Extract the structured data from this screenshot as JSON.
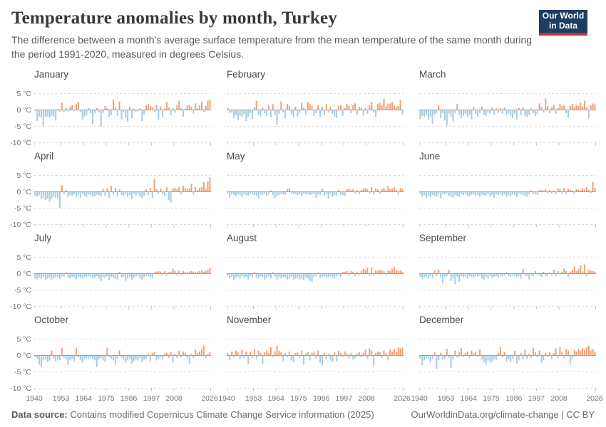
{
  "header": {
    "title": "Temperature anomalies by month, Turkey",
    "subtitle": "The difference between a month's average surface temperature from the mean temperature of the same month during the period 1991-2020, measured in degrees Celsius.",
    "logo": {
      "line1": "Our World",
      "line2": "in Data"
    }
  },
  "footer": {
    "source_label": "Data source:",
    "source_text": " Contains modified Copernicus Climate Change Service information (2025)",
    "link_text": "OurWorldinData.org/climate-change",
    "separator": " | ",
    "license": "CC BY"
  },
  "axes": {
    "y_tick_labels": [
      "5 °C",
      "0 °C",
      "-5 °C",
      "-10 °C"
    ],
    "y_tick_values": [
      5,
      0,
      -5,
      -10
    ],
    "x_tick_years": [
      1940,
      1953,
      1964,
      1975,
      1986,
      1997,
      2008,
      2026
    ],
    "year_start": 1940,
    "year_axis_end": 2026,
    "ylim": [
      -10,
      5
    ],
    "grid": "dashed horizontal"
  },
  "colors": {
    "positive_bar": "#F0A179",
    "negative_bar": "#A8CBE2",
    "gridline": "#DCDCDC",
    "zero_line": "#A6A098",
    "tick_mark": "#C2C2C2",
    "logo_navy": "#1D3D63",
    "logo_red": "#C5303E"
  },
  "chart_data": [
    {
      "type": "bar",
      "title": "January",
      "x_start": 1940,
      "unit": "°C",
      "values": [
        -0.3,
        -3.4,
        -2.0,
        -2.3,
        -4.8,
        -2.2,
        -2.0,
        -2.4,
        -1.8,
        -2.1,
        -3.2,
        0.3,
        -0.6,
        2.2,
        -0.8,
        0.6,
        -0.4,
        1.0,
        1.5,
        -0.3,
        1.8,
        2.4,
        -0.6,
        -3.0,
        -2.1,
        -1.6,
        0.5,
        -1.1,
        -4.4,
        -1.0,
        0.6,
        -0.7,
        -5.1,
        -0.9,
        1.2,
        0.5,
        -2.1,
        -1.6,
        3.1,
        0.8,
        -1.9,
        2.6,
        -2.9,
        -0.7,
        -2.3,
        -3.6,
        1.0,
        -2.6,
        0.4,
        -0.5,
        -0.4,
        0.5,
        -3.4,
        -1.3,
        1.5,
        1.8,
        1.2,
        0.8,
        -0.7,
        1.5,
        -2.9,
        1.0,
        -2.1,
        0.5,
        2.5,
        0.8,
        -1.6,
        0.6,
        -0.9,
        1.5,
        2.8,
        0.5,
        -2.1,
        0.4,
        1.4,
        1.6,
        1.0,
        -1.1,
        2.0,
        0.5,
        1.5,
        2.6,
        -0.6,
        1.2,
        2.9,
        3.2
      ]
    },
    {
      "type": "bar",
      "title": "February",
      "x_start": 1940,
      "unit": "°C",
      "values": [
        0.5,
        -1.0,
        -0.8,
        -2.5,
        -1.5,
        -3.0,
        -1.8,
        -2.0,
        -1.2,
        -3.5,
        -2.2,
        -1.0,
        -2.8,
        0.8,
        2.8,
        -1.5,
        -2.0,
        0.6,
        -1.0,
        -1.8,
        1.5,
        -2.2,
        1.8,
        -1.5,
        -4.5,
        -1.2,
        2.6,
        -0.8,
        -2.5,
        1.8,
        1.2,
        -1.5,
        -2.2,
        1.0,
        -2.0,
        -1.0,
        2.2,
        0.8,
        -1.5,
        2.5,
        1.8,
        1.2,
        -1.8,
        -1.0,
        1.5,
        -2.2,
        1.0,
        -1.5,
        1.8,
        -0.8,
        1.0,
        -1.2,
        -2.0,
        -2.5,
        1.2,
        1.5,
        -1.8,
        0.6,
        1.8,
        1.2,
        -1.0,
        1.5,
        2.0,
        -1.5,
        1.0,
        0.8,
        -1.8,
        0.6,
        -1.2,
        1.5,
        2.5,
        -0.8,
        -2.0,
        1.8,
        2.2,
        1.5,
        3.5,
        1.0,
        1.8,
        2.0,
        2.5,
        1.5,
        1.0,
        1.2,
        3.0,
        -1.5
      ]
    },
    {
      "type": "bar",
      "title": "March",
      "x_start": 1940,
      "unit": "°C",
      "values": [
        -2.8,
        -1.8,
        -2.2,
        -1.5,
        -3.0,
        -2.0,
        -4.2,
        -1.5,
        -1.0,
        1.5,
        -2.5,
        -1.0,
        -3.2,
        -4.8,
        -1.2,
        -2.0,
        -3.5,
        -1.0,
        1.8,
        -1.5,
        -2.5,
        -1.8,
        -1.2,
        -2.2,
        -1.5,
        -2.8,
        0.8,
        -1.2,
        -1.8,
        -1.0,
        1.0,
        -1.5,
        -1.8,
        -0.8,
        -1.2,
        0.8,
        -1.5,
        0.5,
        -1.0,
        0.6,
        -1.2,
        0.8,
        -1.5,
        -1.0,
        -1.8,
        -2.5,
        -1.2,
        -2.8,
        0.6,
        -1.5,
        0.8,
        -1.8,
        -2.2,
        -1.5,
        0.5,
        -1.0,
        -1.8,
        -1.2,
        2.0,
        1.0,
        -0.8,
        3.5,
        1.2,
        -1.0,
        0.8,
        1.5,
        -1.2,
        0.6,
        1.8,
        1.2,
        1.5,
        -1.0,
        -2.5,
        1.2,
        1.8,
        1.0,
        1.5,
        1.2,
        2.2,
        1.0,
        2.8,
        0.8,
        -2.5,
        1.5,
        2.0,
        1.8
      ]
    },
    {
      "type": "bar",
      "title": "April",
      "x_start": 1940,
      "unit": "°C",
      "values": [
        -1.2,
        -1.5,
        -1.0,
        -2.2,
        -1.8,
        -2.5,
        -2.0,
        -3.0,
        -2.2,
        -1.5,
        -1.8,
        -2.0,
        -5.0,
        2.0,
        -0.8,
        0.5,
        -1.5,
        -1.0,
        -1.2,
        -0.8,
        -1.5,
        -1.0,
        -1.8,
        -0.6,
        -1.2,
        -1.5,
        -0.8,
        -1.0,
        -1.5,
        -1.2,
        -0.8,
        -1.0,
        -1.5,
        0.8,
        -1.2,
        1.0,
        -1.8,
        1.8,
        -0.8,
        1.2,
        -1.5,
        0.8,
        -1.0,
        -1.2,
        -0.8,
        -1.5,
        -1.0,
        -2.2,
        -0.6,
        -1.2,
        -0.8,
        -1.5,
        -2.0,
        -1.2,
        0.8,
        -1.0,
        1.2,
        -1.8,
        3.8,
        0.8,
        -0.6,
        1.0,
        -0.8,
        -1.2,
        1.5,
        -2.5,
        -3.2,
        1.0,
        1.2,
        0.8,
        1.5,
        -0.8,
        1.8,
        1.2,
        0.8,
        1.0,
        2.5,
        -0.8,
        1.5,
        0.6,
        1.2,
        1.5,
        3.0,
        1.0,
        3.2,
        4.5
      ]
    },
    {
      "type": "bar",
      "title": "May",
      "x_start": 1940,
      "unit": "°C",
      "values": [
        -0.5,
        -1.8,
        -0.8,
        -1.0,
        -1.2,
        -0.8,
        -1.0,
        -1.5,
        -0.8,
        -1.0,
        -1.2,
        -0.6,
        -0.8,
        -1.0,
        -1.2,
        -2.0,
        -0.8,
        -1.0,
        -0.6,
        -1.2,
        -0.8,
        0.4,
        -1.0,
        -1.8,
        -1.2,
        -1.0,
        -0.6,
        -0.8,
        -1.0,
        0.8,
        1.0,
        -0.5,
        -0.8,
        -0.6,
        -1.0,
        -0.8,
        -1.2,
        -0.6,
        -0.8,
        -0.5,
        -1.0,
        -0.8,
        -0.6,
        -1.8,
        -0.8,
        -1.0,
        0.8,
        -1.2,
        -0.8,
        -2.0,
        -0.6,
        -1.5,
        -1.0,
        -1.2,
        0.6,
        -0.8,
        -1.0,
        -1.2,
        0.8,
        1.0,
        0.6,
        0.8,
        -0.6,
        0.5,
        -0.8,
        0.6,
        1.0,
        1.2,
        0.8,
        -0.6,
        1.5,
        -0.8,
        1.0,
        0.8,
        -0.6,
        0.8,
        1.2,
        0.6,
        1.8,
        0.8,
        1.0,
        1.5,
        0.6,
        -0.8,
        1.2,
        0.8
      ]
    },
    {
      "type": "bar",
      "title": "June",
      "x_start": 1940,
      "unit": "°C",
      "values": [
        -0.8,
        -1.5,
        -1.0,
        -1.8,
        -1.2,
        -1.5,
        -1.0,
        -1.2,
        -1.5,
        -0.8,
        -2.0,
        -0.6,
        -0.8,
        -0.4,
        -1.2,
        -1.5,
        -1.8,
        -1.0,
        -1.2,
        -1.5,
        -0.8,
        -1.0,
        -0.6,
        -1.2,
        -1.5,
        -1.0,
        -0.8,
        -1.2,
        -1.0,
        -1.5,
        -0.8,
        -1.0,
        -1.2,
        -0.6,
        -1.5,
        -1.0,
        -1.8,
        -0.8,
        -1.0,
        -0.6,
        -1.2,
        -0.8,
        -1.5,
        -1.0,
        -1.2,
        -0.8,
        -1.0,
        -1.5,
        -0.6,
        -0.8,
        -1.0,
        -1.2,
        -1.5,
        -0.8,
        0.4,
        -0.6,
        -0.8,
        -1.0,
        0.5,
        0.6,
        0.4,
        0.8,
        -0.4,
        0.6,
        -0.6,
        0.4,
        -0.8,
        1.0,
        0.8,
        -0.6,
        1.2,
        -0.8,
        1.0,
        0.6,
        0.4,
        -0.6,
        0.8,
        0.6,
        0.4,
        1.0,
        0.8,
        1.5,
        0.6,
        -0.4,
        3.0,
        1.2
      ]
    },
    {
      "type": "bar",
      "title": "July",
      "x_start": 1940,
      "unit": "°C",
      "values": [
        -1.5,
        -1.8,
        -1.2,
        -1.5,
        -1.0,
        -2.0,
        -1.5,
        -1.2,
        -1.8,
        -1.5,
        -1.0,
        -1.2,
        -1.5,
        -0.8,
        -1.0,
        0.4,
        -1.2,
        -1.5,
        -1.0,
        -1.2,
        -1.8,
        -1.0,
        -1.2,
        -1.5,
        -1.0,
        -1.2,
        -0.8,
        -1.0,
        -1.5,
        -1.2,
        -0.8,
        -1.5,
        -2.2,
        -1.0,
        -1.2,
        -0.8,
        -2.0,
        -1.0,
        -1.2,
        -1.5,
        -1.8,
        0.5,
        -1.2,
        -1.0,
        -2.2,
        -1.5,
        -1.0,
        -1.8,
        -1.2,
        -0.8,
        -0.6,
        -1.5,
        -1.8,
        -1.2,
        -0.6,
        -0.8,
        -1.0,
        -1.5,
        0.4,
        0.6,
        0.8,
        0.6,
        -0.4,
        0.8,
        -0.6,
        0.4,
        0.6,
        1.5,
        0.8,
        -0.6,
        1.0,
        -0.4,
        0.8,
        0.6,
        0.4,
        0.6,
        0.8,
        0.6,
        0.4,
        0.6,
        0.8,
        1.0,
        0.6,
        0.8,
        1.2,
        1.8
      ]
    },
    {
      "type": "bar",
      "title": "August",
      "x_start": 1940,
      "unit": "°C",
      "values": [
        -0.6,
        -1.5,
        -1.0,
        -1.8,
        -1.2,
        -1.0,
        -1.5,
        -0.8,
        -1.2,
        -1.0,
        -1.8,
        -0.8,
        -1.0,
        0.5,
        -1.2,
        -1.5,
        -0.8,
        -1.0,
        -1.8,
        -1.2,
        -0.8,
        -1.5,
        0.4,
        -1.0,
        -1.8,
        -1.2,
        -1.5,
        -1.0,
        -1.2,
        -1.8,
        -1.5,
        -1.0,
        -1.8,
        -1.5,
        -1.2,
        -1.8,
        -1.5,
        -2.0,
        -1.2,
        -1.5,
        -2.2,
        -2.5,
        -1.0,
        -0.8,
        0.4,
        -1.2,
        -1.0,
        -0.8,
        -1.2,
        -1.0,
        -0.8,
        -1.2,
        -1.5,
        -0.8,
        -0.6,
        -1.0,
        0.5,
        0.6,
        0.8,
        -0.6,
        0.8,
        0.6,
        -0.8,
        0.6,
        -0.4,
        0.8,
        1.5,
        1.2,
        1.8,
        -0.8,
        2.0,
        -0.6,
        1.0,
        0.8,
        1.2,
        1.0,
        0.8,
        -0.4,
        1.0,
        0.8,
        1.5,
        2.0,
        1.2,
        0.8,
        1.0,
        0.6
      ]
    },
    {
      "type": "bar",
      "title": "September",
      "x_start": 1940,
      "unit": "°C",
      "values": [
        -1.0,
        -1.5,
        -1.2,
        -1.0,
        -1.5,
        -0.8,
        -1.2,
        1.0,
        -0.8,
        1.2,
        -1.2,
        -3.0,
        -1.0,
        -0.8,
        1.2,
        -2.2,
        -1.5,
        -3.2,
        -1.0,
        -2.5,
        -0.8,
        -1.2,
        -1.0,
        -1.5,
        -0.8,
        -1.0,
        -1.2,
        -0.8,
        -1.0,
        -0.6,
        -1.5,
        -1.8,
        -1.0,
        -1.5,
        -0.8,
        -1.2,
        -1.0,
        -0.8,
        -1.2,
        -0.6,
        -0.8,
        -0.6,
        0.5,
        -0.8,
        -1.0,
        -0.6,
        -0.8,
        -1.2,
        -0.6,
        -1.5,
        1.5,
        -0.6,
        -0.8,
        -1.8,
        -0.6,
        -0.8,
        0.8,
        -0.4,
        -0.6,
        -1.0,
        0.6,
        -0.8,
        -0.6,
        0.4,
        -0.6,
        1.2,
        -0.8,
        0.8,
        -0.4,
        0.6,
        1.5,
        0.8,
        -1.0,
        0.6,
        1.2,
        2.2,
        0.8,
        1.5,
        2.5,
        0.6,
        2.8,
        -0.8,
        1.2,
        1.0,
        0.8,
        0.6
      ]
    },
    {
      "type": "bar",
      "title": "October",
      "x_start": 1940,
      "unit": "°C",
      "values": [
        -0.4,
        -1.0,
        -2.8,
        -3.5,
        -1.5,
        -1.2,
        -2.0,
        -1.5,
        1.5,
        -1.0,
        -1.8,
        -1.2,
        -1.5,
        2.3,
        -0.8,
        -1.2,
        -2.8,
        -1.5,
        -1.0,
        -1.8,
        2.2,
        -0.6,
        -1.5,
        -2.2,
        -1.0,
        -0.8,
        -1.2,
        -0.6,
        -1.0,
        -1.5,
        -3.5,
        -1.2,
        -0.8,
        -1.5,
        -2.0,
        2.4,
        -0.6,
        -1.0,
        -1.5,
        -2.8,
        -1.0,
        1.5,
        -0.8,
        -1.2,
        -2.2,
        -1.5,
        -1.0,
        -2.5,
        -1.8,
        -1.2,
        -1.5,
        -0.8,
        -2.0,
        -1.2,
        -1.0,
        0.5,
        -1.8,
        0.8,
        1.0,
        -1.5,
        -1.0,
        -0.6,
        -1.2,
        0.6,
        0.8,
        -0.8,
        1.0,
        -2.2,
        0.5,
        -0.8,
        1.5,
        -0.6,
        1.2,
        0.8,
        -1.0,
        -2.5,
        0.6,
        -0.8,
        1.8,
        0.8,
        1.2,
        2.0,
        3.0,
        -0.8,
        0.5,
        1.0
      ]
    },
    {
      "type": "bar",
      "title": "November",
      "x_start": 1940,
      "unit": "°C",
      "values": [
        0.8,
        -1.5,
        1.2,
        -0.6,
        1.5,
        1.0,
        -1.2,
        1.8,
        -0.8,
        1.2,
        -2.5,
        1.0,
        -0.8,
        2.0,
        -1.2,
        1.5,
        0.8,
        -2.5,
        1.0,
        1.5,
        0.8,
        2.5,
        -0.6,
        1.2,
        3.0,
        1.5,
        1.0,
        -1.8,
        0.8,
        -0.6,
        1.2,
        -1.5,
        -2.0,
        0.8,
        1.0,
        -0.8,
        1.5,
        -2.8,
        0.6,
        1.0,
        -1.5,
        0.8,
        1.2,
        -1.0,
        1.5,
        -2.2,
        -3.0,
        0.8,
        -1.2,
        0.6,
        -1.5,
        -2.0,
        1.0,
        -1.8,
        1.5,
        0.8,
        -0.6,
        1.2,
        0.6,
        -1.0,
        0.8,
        -1.2,
        -0.8,
        0.6,
        1.0,
        -0.6,
        0.8,
        1.8,
        -1.0,
        2.2,
        1.5,
        -3.2,
        0.8,
        1.2,
        1.0,
        -0.8,
        1.5,
        0.8,
        -1.5,
        1.8,
        1.2,
        2.0,
        1.0,
        2.5,
        2.2,
        2.4
      ]
    },
    {
      "type": "bar",
      "title": "December",
      "x_start": 1940,
      "unit": "°C",
      "values": [
        -1.0,
        -3.0,
        -1.5,
        -0.8,
        -1.2,
        -2.0,
        -1.0,
        1.0,
        -4.0,
        -1.5,
        0.8,
        -1.2,
        -1.0,
        2.0,
        -0.8,
        -3.8,
        -1.2,
        1.5,
        -0.8,
        1.0,
        2.2,
        -0.6,
        0.8,
        1.2,
        -0.8,
        1.5,
        0.6,
        1.0,
        -0.6,
        1.8,
        -1.2,
        -2.0,
        -2.5,
        -1.5,
        -2.2,
        -1.8,
        -1.0,
        -1.5,
        0.8,
        2.5,
        -0.6,
        1.0,
        -1.8,
        -1.2,
        -2.0,
        -1.0,
        1.5,
        -2.5,
        -1.5,
        0.8,
        -1.2,
        1.8,
        -1.0,
        0.6,
        -0.8,
        2.4,
        1.0,
        -0.6,
        1.5,
        -2.2,
        -1.5,
        0.8,
        -0.6,
        1.0,
        -1.2,
        0.8,
        2.2,
        -0.8,
        2.6,
        1.0,
        -0.8,
        2.0,
        1.5,
        -2.8,
        -1.0,
        1.8,
        1.2,
        2.0,
        1.5,
        2.2,
        1.8,
        2.5,
        3.0,
        1.5,
        2.0,
        1.2
      ]
    }
  ]
}
